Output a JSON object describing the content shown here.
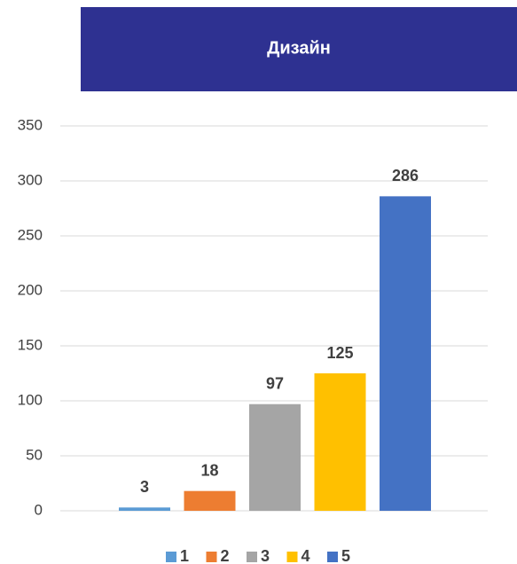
{
  "chart_data": {
    "type": "bar",
    "title": "Дизайн",
    "categories": [
      null
    ],
    "series": [
      {
        "name": "1",
        "color": "#5b9bd5",
        "values": [
          3
        ]
      },
      {
        "name": "2",
        "color": "#ed7d31",
        "values": [
          18
        ]
      },
      {
        "name": "3",
        "color": "#a5a5a5",
        "values": [
          97
        ]
      },
      {
        "name": "4",
        "color": "#ffc000",
        "values": [
          125
        ]
      },
      {
        "name": "5",
        "color": "#4472c4",
        "values": [
          286
        ]
      }
    ],
    "ylim": [
      0,
      350
    ],
    "yticks": [
      0,
      50,
      100,
      150,
      200,
      250,
      300,
      350
    ],
    "grid": true,
    "legend": "bottom",
    "title_background": "#2e3191"
  }
}
